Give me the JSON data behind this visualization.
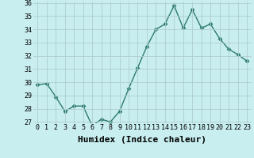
{
  "x": [
    0,
    1,
    2,
    3,
    4,
    5,
    6,
    7,
    8,
    9,
    10,
    11,
    12,
    13,
    14,
    15,
    16,
    17,
    18,
    19,
    20,
    21,
    22,
    23
  ],
  "y": [
    29.8,
    29.9,
    28.9,
    27.8,
    28.2,
    28.2,
    26.7,
    27.2,
    27.0,
    27.8,
    29.5,
    31.1,
    32.7,
    34.0,
    34.4,
    35.8,
    34.1,
    35.5,
    34.1,
    34.4,
    33.3,
    32.5,
    32.1,
    31.6
  ],
  "line_color": "#2d7b6e",
  "marker": "D",
  "marker_size": 2.5,
  "bg_color": "#c8eef0",
  "grid_color": "#b0cdd0",
  "xlabel": "Humidex (Indice chaleur)",
  "ylim": [
    27,
    36
  ],
  "xlim": [
    -0.5,
    23.5
  ],
  "yticks": [
    27,
    28,
    29,
    30,
    31,
    32,
    33,
    34,
    35,
    36
  ],
  "xticks": [
    0,
    1,
    2,
    3,
    4,
    5,
    6,
    7,
    8,
    9,
    10,
    11,
    12,
    13,
    14,
    15,
    16,
    17,
    18,
    19,
    20,
    21,
    22,
    23
  ],
  "tick_label_fontsize": 6,
  "xlabel_fontsize": 8,
  "linewidth": 1.0
}
